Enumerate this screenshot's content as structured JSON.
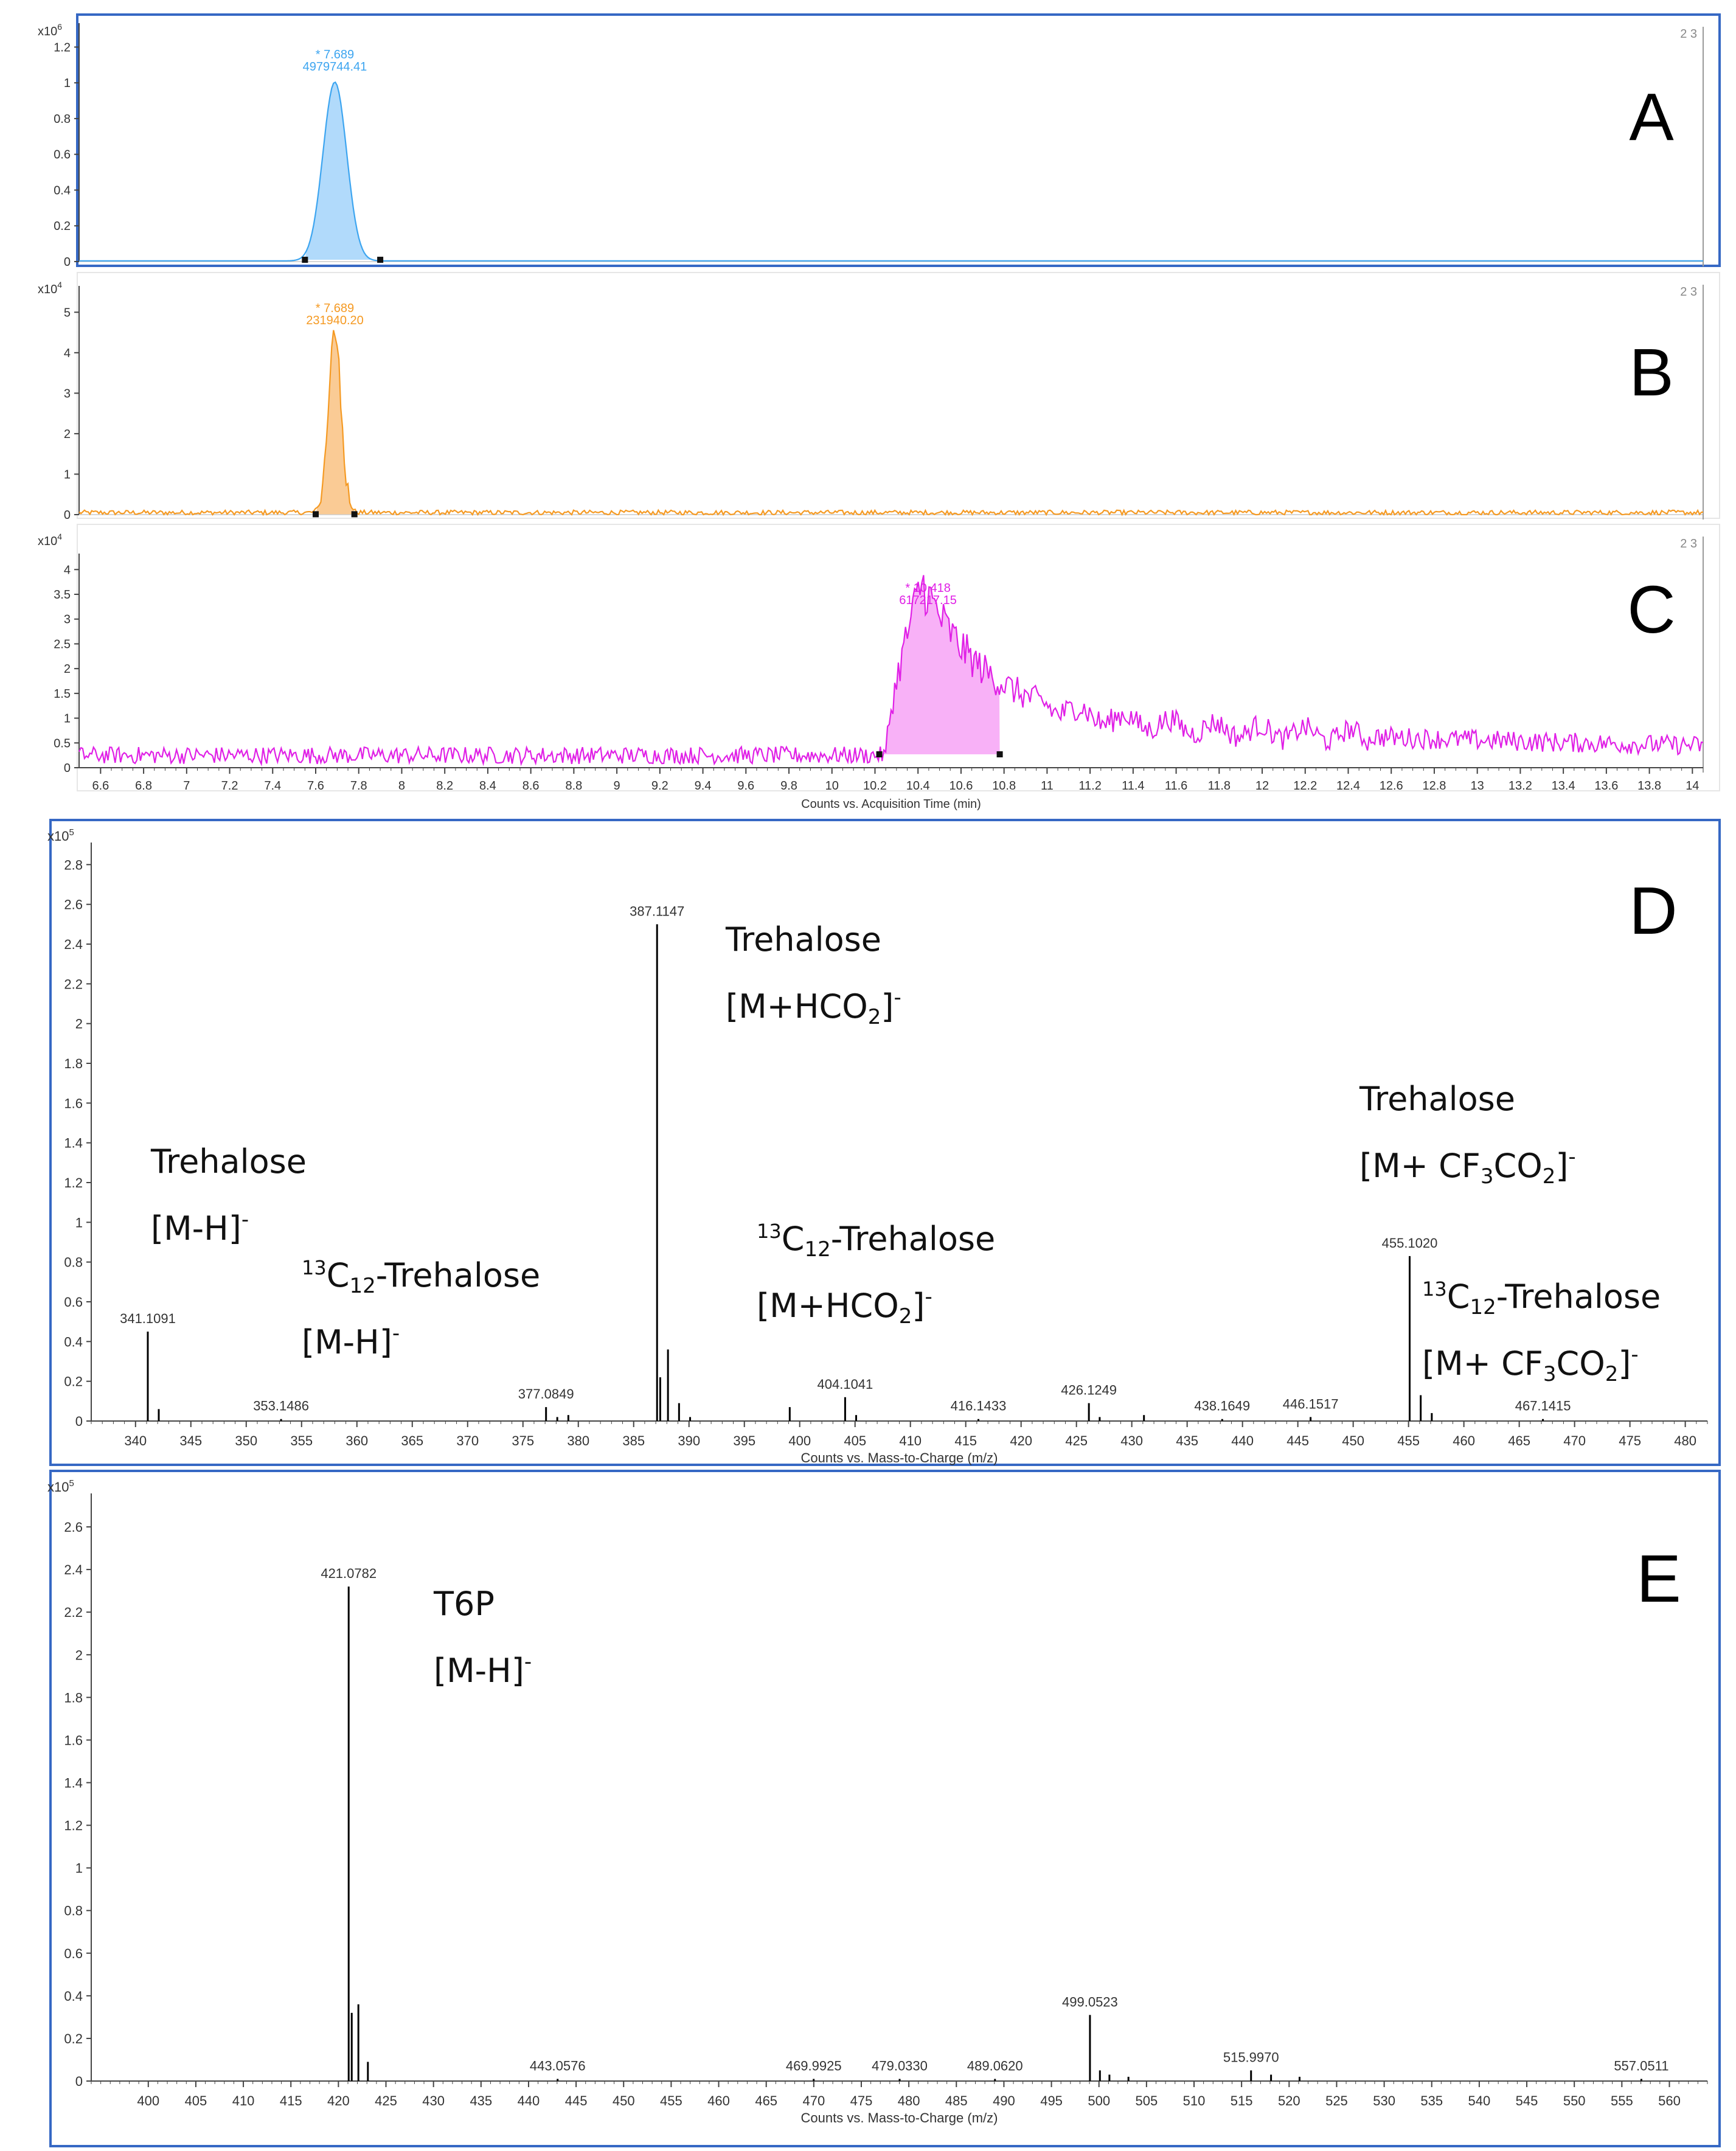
{
  "colors": {
    "a_trace": "#3da5f0",
    "a_fill": "#a9d6fb",
    "b_trace": "#f59a23",
    "b_fill": "#f9c58a",
    "c_trace": "#e020e6",
    "c_fill": "#f7a8f6",
    "spectrum": "#000000",
    "frame": "#3668c4",
    "axis": "#444444",
    "text": "#333333"
  },
  "chromatogram_xaxis": {
    "label": "Counts vs. Acquisition Time (min)",
    "ticks": [
      "6.6",
      "6.8",
      "7",
      "7.2",
      "7.4",
      "7.6",
      "7.8",
      "8",
      "8.2",
      "8.4",
      "8.6",
      "8.8",
      "9",
      "9.2",
      "9.4",
      "9.6",
      "9.8",
      "10",
      "10.2",
      "10.4",
      "10.6",
      "10.8",
      "11",
      "11.2",
      "11.4",
      "11.6",
      "11.8",
      "12",
      "12.2",
      "12.4",
      "12.6",
      "12.8",
      "13",
      "13.2",
      "13.4",
      "13.6",
      "13.8",
      "14"
    ]
  },
  "chart_data": [
    {
      "id": "A",
      "type": "line",
      "panel_label": "A",
      "multiplier": "x10",
      "exponent": "6",
      "corner_note": "2 3",
      "xlim": [
        6.5,
        14.05
      ],
      "ylim": [
        0,
        1.3
      ],
      "yticks": [
        "0",
        "0.2",
        "0.4",
        "0.6",
        "0.8",
        "1",
        "1.2"
      ],
      "peak_rt": 7.689,
      "peak_height": 1.0,
      "peak_width": 0.055,
      "integration_start": 7.55,
      "integration_end": 7.9,
      "peak_label_rt": "* 7.689",
      "peak_label_area": "4979744.41",
      "noise": 0.0
    },
    {
      "id": "B",
      "type": "line",
      "panel_label": "B",
      "multiplier": "x10",
      "exponent": "4",
      "corner_note": "2 3",
      "xlim": [
        6.5,
        14.05
      ],
      "ylim": [
        0,
        5.5
      ],
      "yticks": [
        "0",
        "1",
        "2",
        "3",
        "4",
        "5"
      ],
      "peak_rt": 7.689,
      "peak_height": 4.4,
      "peak_width": 0.03,
      "integration_start": 7.6,
      "integration_end": 7.78,
      "peak_label_rt": "* 7.689",
      "peak_label_area": "231940.20",
      "noise": 0.12
    },
    {
      "id": "C",
      "type": "line",
      "panel_label": "C",
      "multiplier": "x10",
      "exponent": "4",
      "corner_note": "2 3",
      "xlim": [
        6.5,
        14.05
      ],
      "ylim": [
        0,
        4.2
      ],
      "yticks": [
        "0",
        "0.5",
        "1",
        "1.5",
        "2",
        "2.5",
        "3",
        "3.5",
        "4"
      ],
      "peak_rt": 10.418,
      "peak_height": 3.5,
      "peak_width": 0.09,
      "integration_start": 10.22,
      "integration_end": 10.78,
      "peak_label_rt": "* 10.418",
      "peak_label_area": "617217.15",
      "noise": 0.35,
      "tail_level": 1.0
    },
    {
      "id": "D",
      "type": "bar",
      "panel_label": "D",
      "multiplier": "x10",
      "exponent": "5",
      "xlabel": "Counts vs. Mass-to-Charge (m/z)",
      "xlim": [
        336,
        482
      ],
      "ylim": [
        0,
        2.85
      ],
      "xticks": [
        "340",
        "345",
        "350",
        "355",
        "360",
        "365",
        "370",
        "375",
        "380",
        "385",
        "390",
        "395",
        "400",
        "405",
        "410",
        "415",
        "420",
        "425",
        "430",
        "435",
        "440",
        "445",
        "450",
        "455",
        "460",
        "465",
        "470",
        "475",
        "480"
      ],
      "yticks": [
        "0",
        "0.2",
        "0.4",
        "0.6",
        "0.8",
        "1",
        "1.2",
        "1.4",
        "1.6",
        "1.8",
        "2",
        "2.2",
        "2.4",
        "2.6",
        "2.8"
      ],
      "peaks": [
        {
          "mz": 341.1091,
          "intensity": 0.45,
          "label": "341.1091"
        },
        {
          "mz": 342.1,
          "intensity": 0.06
        },
        {
          "mz": 353.1486,
          "intensity": 0.01,
          "label": "353.1486"
        },
        {
          "mz": 377.0849,
          "intensity": 0.07,
          "label": "377.0849"
        },
        {
          "mz": 378.1,
          "intensity": 0.02
        },
        {
          "mz": 379.1,
          "intensity": 0.03
        },
        {
          "mz": 387.1147,
          "intensity": 2.5,
          "label": "387.1147"
        },
        {
          "mz": 387.4,
          "intensity": 0.22
        },
        {
          "mz": 388.1,
          "intensity": 0.36
        },
        {
          "mz": 389.1,
          "intensity": 0.09
        },
        {
          "mz": 390.1,
          "intensity": 0.02
        },
        {
          "mz": 399.1,
          "intensity": 0.07
        },
        {
          "mz": 404.1041,
          "intensity": 0.12,
          "label": "404.1041"
        },
        {
          "mz": 405.1,
          "intensity": 0.03
        },
        {
          "mz": 416.1433,
          "intensity": 0.01,
          "label": "416.1433"
        },
        {
          "mz": 426.1249,
          "intensity": 0.09,
          "label": "426.1249"
        },
        {
          "mz": 427.1,
          "intensity": 0.02
        },
        {
          "mz": 431.1,
          "intensity": 0.03
        },
        {
          "mz": 438.1649,
          "intensity": 0.01,
          "label": "438.1649"
        },
        {
          "mz": 446.1517,
          "intensity": 0.02,
          "label": "446.1517"
        },
        {
          "mz": 455.102,
          "intensity": 0.83,
          "label": "455.1020"
        },
        {
          "mz": 456.1,
          "intensity": 0.13
        },
        {
          "mz": 457.1,
          "intensity": 0.04
        },
        {
          "mz": 467.1415,
          "intensity": 0.01,
          "label": "467.1415"
        }
      ],
      "annotations": [
        {
          "id": "d1",
          "lines": [
            {
              "pre": "",
              "sup_pre": "",
              "main": "Trehalose",
              "sub": "",
              "tail": "",
              "sup": ""
            },
            {
              "pre": "",
              "sup_pre": "",
              "main": "[M-H]",
              "sub": "",
              "tail": "",
              "sup": "-"
            }
          ]
        },
        {
          "id": "d2",
          "lines": [
            {
              "pre": "",
              "sup_pre": "13",
              "main": "C",
              "sub": "12",
              "tail": "-Trehalose",
              "sup": ""
            },
            {
              "pre": "",
              "sup_pre": "",
              "main": "[M-H]",
              "sub": "",
              "tail": "",
              "sup": "-"
            }
          ]
        },
        {
          "id": "d3",
          "lines": [
            {
              "pre": "",
              "sup_pre": "",
              "main": "Trehalose",
              "sub": "",
              "tail": "",
              "sup": ""
            },
            {
              "pre": "",
              "sup_pre": "",
              "main": "[M+HCO",
              "sub": "2",
              "tail": "]",
              "sup": "-"
            }
          ]
        },
        {
          "id": "d4",
          "lines": [
            {
              "pre": "",
              "sup_pre": "13",
              "main": "C",
              "sub": "12",
              "tail": "-Trehalose",
              "sup": ""
            },
            {
              "pre": "",
              "sup_pre": "",
              "main": "[M+HCO",
              "sub": "2",
              "tail": "]",
              "sup": "-"
            }
          ]
        },
        {
          "id": "d5",
          "lines": [
            {
              "pre": "",
              "sup_pre": "",
              "main": "Trehalose",
              "sub": "",
              "tail": "",
              "sup": ""
            },
            {
              "pre": "",
              "sup_pre": "",
              "main": "[M+ CF",
              "sub": "3",
              "tail": "CO",
              "sub2": "2",
              "tail2": "]",
              "sup": "-"
            }
          ]
        },
        {
          "id": "d6",
          "lines": [
            {
              "pre": "",
              "sup_pre": "13",
              "main": "C",
              "sub": "12",
              "tail": "-Trehalose",
              "sup": ""
            },
            {
              "pre": "",
              "sup_pre": "",
              "main": "[M+ CF",
              "sub": "3",
              "tail": "CO",
              "sub2": "2",
              "tail2": "]",
              "sup": "-"
            }
          ]
        }
      ]
    },
    {
      "id": "E",
      "type": "bar",
      "panel_label": "E",
      "multiplier": "x10",
      "exponent": "5",
      "xlabel": "Counts vs. Mass-to-Charge (m/z)",
      "xlim": [
        394,
        564
      ],
      "ylim": [
        0,
        2.7
      ],
      "xticks": [
        "400",
        "405",
        "410",
        "415",
        "420",
        "425",
        "430",
        "435",
        "440",
        "445",
        "450",
        "455",
        "460",
        "465",
        "470",
        "475",
        "480",
        "485",
        "490",
        "495",
        "500",
        "505",
        "510",
        "515",
        "520",
        "525",
        "530",
        "535",
        "540",
        "545",
        "550",
        "555",
        "560"
      ],
      "yticks": [
        "0",
        "0.2",
        "0.4",
        "0.6",
        "0.8",
        "1",
        "1.2",
        "1.4",
        "1.6",
        "1.8",
        "2",
        "2.2",
        "2.4",
        "2.6"
      ],
      "peaks": [
        {
          "mz": 421.0782,
          "intensity": 2.32,
          "label": "421.0782"
        },
        {
          "mz": 421.4,
          "intensity": 0.32
        },
        {
          "mz": 422.1,
          "intensity": 0.36
        },
        {
          "mz": 423.1,
          "intensity": 0.09
        },
        {
          "mz": 443.0576,
          "intensity": 0.01,
          "label": "443.0576"
        },
        {
          "mz": 469.9925,
          "intensity": 0.01,
          "label": "469.9925"
        },
        {
          "mz": 479.033,
          "intensity": 0.01,
          "label": "479.0330"
        },
        {
          "mz": 489.062,
          "intensity": 0.01,
          "label": "489.0620"
        },
        {
          "mz": 499.0523,
          "intensity": 0.31,
          "label": "499.0523"
        },
        {
          "mz": 500.1,
          "intensity": 0.05
        },
        {
          "mz": 501.1,
          "intensity": 0.03
        },
        {
          "mz": 503.1,
          "intensity": 0.02
        },
        {
          "mz": 515.997,
          "intensity": 0.05,
          "label": "515.9970"
        },
        {
          "mz": 518.1,
          "intensity": 0.03
        },
        {
          "mz": 521.1,
          "intensity": 0.02
        },
        {
          "mz": 557.0511,
          "intensity": 0.01,
          "label": "557.0511"
        }
      ],
      "annotations": [
        {
          "id": "e1",
          "lines": [
            {
              "pre": "",
              "sup_pre": "",
              "main": "T6P",
              "sub": "",
              "tail": "",
              "sup": ""
            },
            {
              "pre": "",
              "sup_pre": "",
              "main": "[M-H]",
              "sub": "",
              "tail": "",
              "sup": "-"
            }
          ]
        }
      ]
    }
  ]
}
